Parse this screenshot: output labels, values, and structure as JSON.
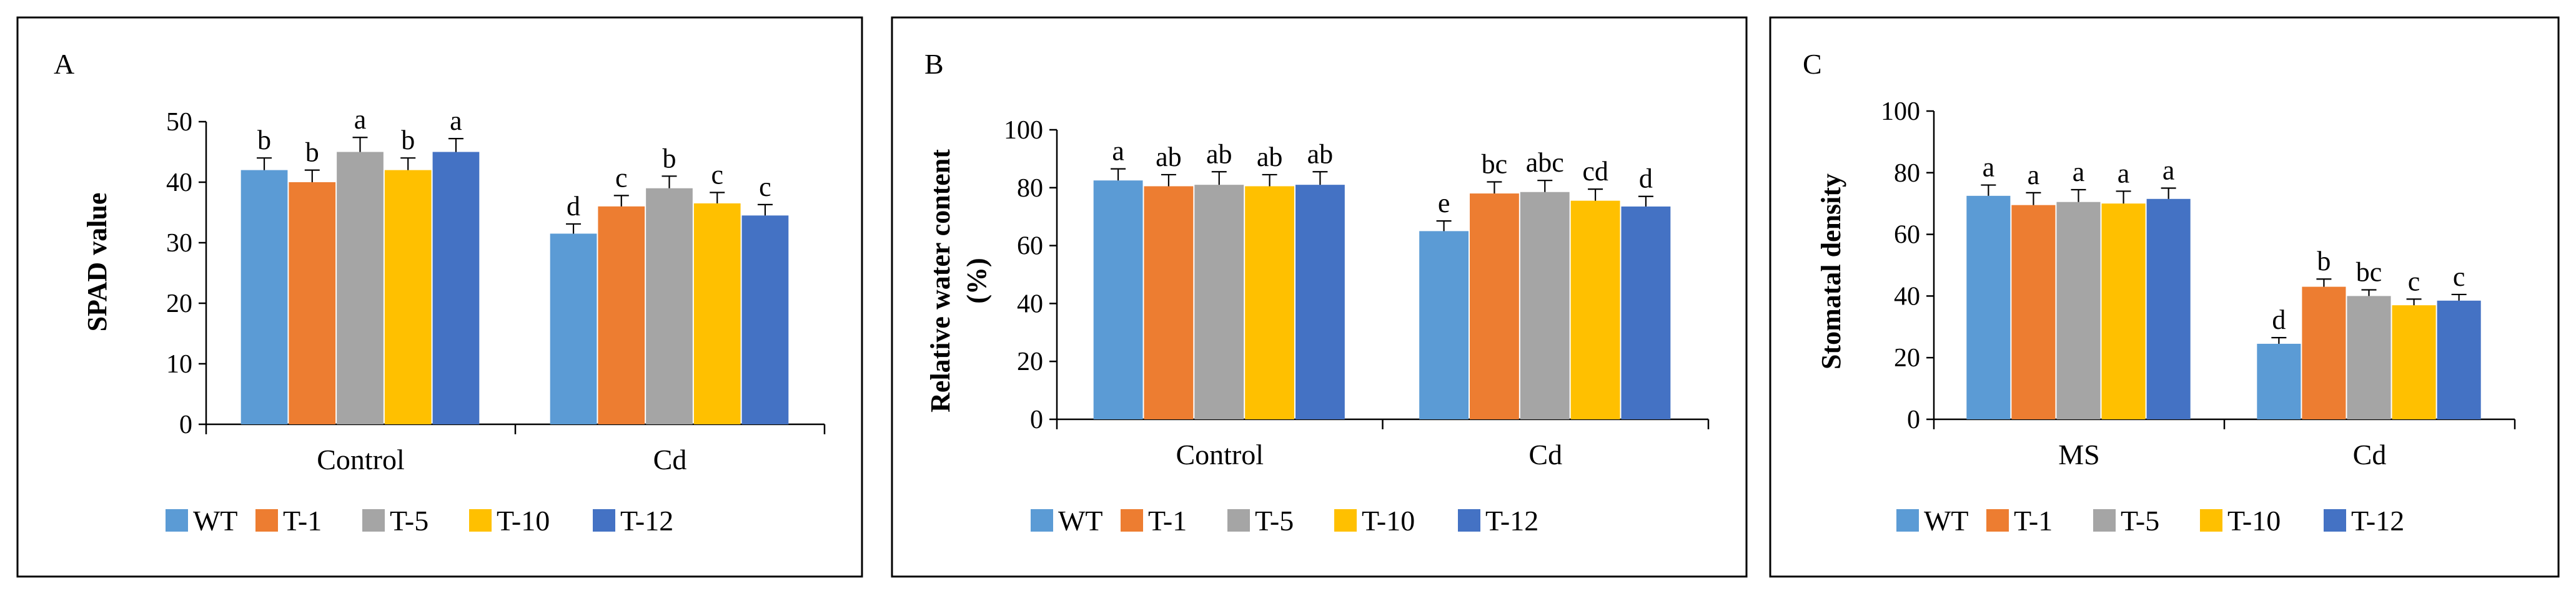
{
  "chart_data": [
    {
      "type": "bar",
      "panel_label": "A",
      "title": "",
      "xlabel": "",
      "ylabel": "SPAD value",
      "ylim": [
        0,
        50
      ],
      "yticks": [
        "0",
        "10",
        "20",
        "30",
        "40",
        "50"
      ],
      "grid": false,
      "legend_position": "bottom",
      "categories": [
        "Control",
        "Cd"
      ],
      "series": [
        {
          "name": "WT",
          "color": "#5B9BD5",
          "values": [
            42,
            31.5
          ],
          "errors": [
            2,
            1.6
          ],
          "letters": [
            "b",
            "d"
          ]
        },
        {
          "name": "T-1",
          "color": "#ED7D31",
          "values": [
            40,
            36
          ],
          "errors": [
            2,
            1.8
          ],
          "letters": [
            "b",
            "c"
          ]
        },
        {
          "name": "T-5",
          "color": "#A5A5A5",
          "values": [
            45,
            39
          ],
          "errors": [
            2.4,
            2
          ],
          "letters": [
            "a",
            "b"
          ]
        },
        {
          "name": "T-10",
          "color": "#FFC000",
          "values": [
            42,
            36.5
          ],
          "errors": [
            2,
            1.8
          ],
          "letters": [
            "b",
            "c"
          ]
        },
        {
          "name": "T-12",
          "color": "#4472C4",
          "values": [
            45,
            34.5
          ],
          "errors": [
            2.2,
            1.8
          ],
          "letters": [
            "a",
            "c"
          ]
        }
      ]
    },
    {
      "type": "bar",
      "panel_label": "B",
      "title": "",
      "xlabel": "",
      "ylabel": "Relative water content",
      "ylabel_line2": "(%)",
      "ylim": [
        0,
        100
      ],
      "yticks": [
        "0",
        "20",
        "40",
        "60",
        "80",
        "100"
      ],
      "grid": false,
      "legend_position": "bottom",
      "categories": [
        "Control",
        "Cd"
      ],
      "series": [
        {
          "name": "WT",
          "color": "#5B9BD5",
          "values": [
            82.5,
            65
          ],
          "errors": [
            4,
            3.5
          ],
          "letters": [
            "a",
            "e"
          ]
        },
        {
          "name": "T-1",
          "color": "#ED7D31",
          "values": [
            80.5,
            78
          ],
          "errors": [
            4,
            4
          ],
          "letters": [
            "ab",
            "bc"
          ]
        },
        {
          "name": "T-5",
          "color": "#A5A5A5",
          "values": [
            81,
            78.5
          ],
          "errors": [
            4.5,
            4
          ],
          "letters": [
            "ab",
            "abc"
          ]
        },
        {
          "name": "T-10",
          "color": "#FFC000",
          "values": [
            80.5,
            75.5
          ],
          "errors": [
            4,
            4
          ],
          "letters": [
            "ab",
            "cd"
          ]
        },
        {
          "name": "T-12",
          "color": "#4472C4",
          "values": [
            81,
            73.5
          ],
          "errors": [
            4.5,
            3.5
          ],
          "letters": [
            "ab",
            "d"
          ]
        }
      ]
    },
    {
      "type": "bar",
      "panel_label": "C",
      "title": "",
      "xlabel": "",
      "ylabel": "Stomatal density",
      "ylim": [
        0,
        100
      ],
      "yticks": [
        "0",
        "20",
        "40",
        "60",
        "80",
        "100"
      ],
      "grid": false,
      "legend_position": "bottom",
      "categories": [
        "MS",
        "Cd"
      ],
      "series": [
        {
          "name": "WT",
          "color": "#5B9BD5",
          "values": [
            72.5,
            24.5
          ],
          "errors": [
            3.5,
            2
          ],
          "letters": [
            "a",
            "d"
          ]
        },
        {
          "name": "T-1",
          "color": "#ED7D31",
          "values": [
            69.5,
            43
          ],
          "errors": [
            4,
            2.5
          ],
          "letters": [
            "a",
            "b"
          ]
        },
        {
          "name": "T-5",
          "color": "#A5A5A5",
          "values": [
            70.5,
            40
          ],
          "errors": [
            4,
            2
          ],
          "letters": [
            "a",
            "bc"
          ]
        },
        {
          "name": "T-10",
          "color": "#FFC000",
          "values": [
            70,
            37
          ],
          "errors": [
            4,
            2
          ],
          "letters": [
            "a",
            "c"
          ]
        },
        {
          "name": "T-12",
          "color": "#4472C4",
          "values": [
            71.5,
            38.5
          ],
          "errors": [
            3.5,
            2
          ],
          "letters": [
            "a",
            "c"
          ]
        }
      ]
    }
  ]
}
